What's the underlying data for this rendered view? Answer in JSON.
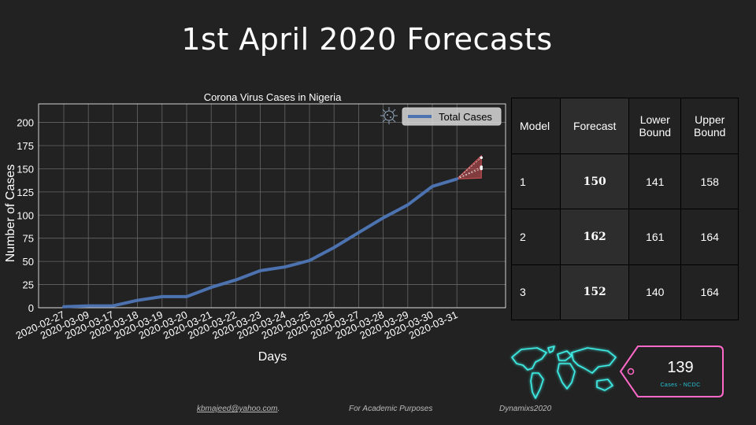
{
  "slide": {
    "title": "1st April 2020 Forecasts"
  },
  "chart_data": {
    "type": "line",
    "title": "Corona Virus Cases in Nigeria",
    "xlabel": "Days",
    "ylabel": "Number of Cases",
    "categories": [
      "2020-02-27",
      "2020-03-09",
      "2020-03-17",
      "2020-03-18",
      "2020-03-19",
      "2020-03-20",
      "2020-03-21",
      "2020-03-22",
      "2020-03-23",
      "2020-03-24",
      "2020-03-25",
      "2020-03-26",
      "2020-03-27",
      "2020-03-28",
      "2020-03-29",
      "2020-03-30",
      "2020-03-31"
    ],
    "series": [
      {
        "name": "Total Cases",
        "color": "#4c72b0",
        "values": [
          1,
          2,
          2,
          8,
          12,
          12,
          22,
          30,
          40,
          44,
          51,
          65,
          81,
          97,
          111,
          131,
          139
        ]
      }
    ],
    "forecast_fan": {
      "color": "#c44e52",
      "from": 139,
      "lower": 140,
      "upper": 164,
      "points": [
        150,
        162,
        152
      ]
    },
    "ylim": [
      0,
      220
    ],
    "yticks": [
      0,
      25,
      50,
      75,
      100,
      125,
      150,
      175,
      200
    ],
    "grid": true,
    "legend_position": "top-right",
    "legend_icon": "virus-icon"
  },
  "table": {
    "headers": [
      "Model",
      "Forecast",
      "Lower Bound",
      "Upper Bound"
    ],
    "rows": [
      [
        "1",
        "150",
        "141",
        "158"
      ],
      [
        "2",
        "162",
        "161",
        "164"
      ],
      [
        "3",
        "152",
        "140",
        "164"
      ]
    ]
  },
  "tag": {
    "value": "139",
    "label": "Cases - NCDC",
    "border_color": "#ff69c8",
    "map_glow_color": "#3ef0e8",
    "map_icon": "world-map-icon"
  },
  "footer": {
    "email": "kbmajeed@yahoo.com",
    "email_suffix": ".",
    "purpose": "For Academic Purposes",
    "brand": "Dynamixs2020"
  }
}
